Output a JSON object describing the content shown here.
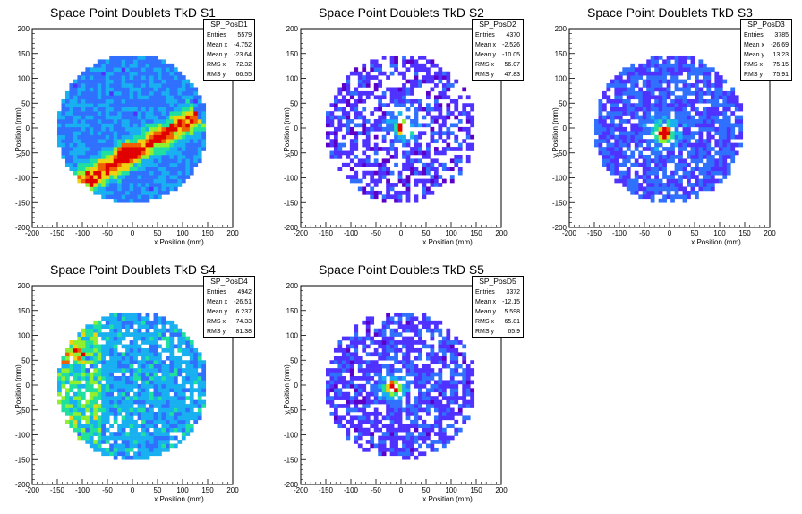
{
  "chart_data": [
    {
      "type": "heatmap",
      "title": "Space Point Doublets TkD S1",
      "xlabel": "x Position (mm)",
      "ylabel": "y Position (mm)",
      "xlim": [
        -200,
        200
      ],
      "ylim": [
        -200,
        200
      ],
      "xticks": [
        -200,
        -150,
        -100,
        -50,
        0,
        50,
        100,
        150,
        200
      ],
      "yticks": [
        -200,
        -150,
        -100,
        -50,
        0,
        50,
        100,
        150,
        200
      ],
      "stats": {
        "name": "SP_PosD1",
        "entries": "5579",
        "mean_x": "-4.752",
        "mean_y": "-23.64",
        "rms_x": "72.32",
        "rms_y": "66.55"
      },
      "features": {
        "radius": 150,
        "band": {
          "from": [
            -100,
            -110
          ],
          "to": [
            120,
            20
          ],
          "peak": [
            -10,
            -50
          ],
          "strength": 0.75
        },
        "background": 0.22
      }
    },
    {
      "type": "heatmap",
      "title": "Space Point Doublets TkD S2",
      "xlabel": "x Position (mm)",
      "ylabel": "y Position (mm)",
      "xlim": [
        -200,
        200
      ],
      "ylim": [
        -200,
        200
      ],
      "xticks": [
        -200,
        -150,
        -100,
        -50,
        0,
        50,
        100,
        150,
        200
      ],
      "yticks": [
        -200,
        -150,
        -100,
        -50,
        0,
        50,
        100,
        150,
        200
      ],
      "stats": {
        "name": "SP_PosD2",
        "entries": "4370",
        "mean_x": "-2.526",
        "mean_y": "-10.05",
        "rms_x": "56.07",
        "rms_y": "47.83"
      },
      "features": {
        "radius": 150,
        "hotspot": [
          5,
          0
        ],
        "background": 0.08,
        "sparse": 0.45
      }
    },
    {
      "type": "heatmap",
      "title": "Space Point Doublets TkD S3",
      "xlabel": "x Position (mm)",
      "ylabel": "y Position (mm)",
      "xlim": [
        -200,
        200
      ],
      "ylim": [
        -200,
        200
      ],
      "xticks": [
        -200,
        -150,
        -100,
        -50,
        0,
        50,
        100,
        150,
        200
      ],
      "yticks": [
        -200,
        -150,
        -100,
        -50,
        0,
        50,
        100,
        150,
        200
      ],
      "stats": {
        "name": "SP_PosD3",
        "entries": "3785",
        "mean_x": "-26.69",
        "mean_y": "13.23",
        "rms_x": "75.15",
        "rms_y": "75.91"
      },
      "features": {
        "radius": 150,
        "hotspot": [
          -10,
          -10
        ],
        "background": 0.14,
        "sparse": 0.2
      }
    },
    {
      "type": "heatmap",
      "title": "Space Point Doublets TkD S4",
      "xlabel": "x Position (mm)",
      "ylabel": "y Position (mm)",
      "xlim": [
        -200,
        200
      ],
      "ylim": [
        -200,
        200
      ],
      "xticks": [
        -200,
        -150,
        -100,
        -50,
        0,
        50,
        100,
        150,
        200
      ],
      "yticks": [
        -200,
        -150,
        -100,
        -50,
        0,
        50,
        100,
        150,
        200
      ],
      "stats": {
        "name": "SP_PosD4",
        "entries": "4942",
        "mean_x": "-26.51",
        "mean_y": "6.237",
        "rms_x": "74.33",
        "rms_y": "81.38"
      },
      "features": {
        "radius": 150,
        "left_bias": true,
        "background": 0.28,
        "sparse": 0.12
      }
    },
    {
      "type": "heatmap",
      "title": "Space Point Doublets TkD S5",
      "xlabel": "x Position (mm)",
      "ylabel": "y Position (mm)",
      "xlim": [
        -200,
        200
      ],
      "ylim": [
        -200,
        200
      ],
      "xticks": [
        -200,
        -150,
        -100,
        -50,
        0,
        50,
        100,
        150,
        200
      ],
      "yticks": [
        -200,
        -150,
        -100,
        -50,
        0,
        50,
        100,
        150,
        200
      ],
      "stats": {
        "name": "SP_PosD5",
        "entries": "3372",
        "mean_x": "-12.15",
        "mean_y": "5.598",
        "rms_x": "65.81",
        "rms_y": "65.9"
      },
      "features": {
        "radius": 150,
        "hotspot": [
          -15,
          -5
        ],
        "background": 0.1,
        "sparse": 0.3
      }
    }
  ],
  "stat_labels": {
    "entries": "Entries",
    "mean_x": "Mean x",
    "mean_y": "Mean y",
    "rms_x": "RMS x",
    "rms_y": "RMS y"
  },
  "palette": [
    "#5c00c8",
    "#4f32ff",
    "#3070ff",
    "#18b0f0",
    "#20e0a0",
    "#90f030",
    "#f0d010",
    "#f06000",
    "#e00000"
  ]
}
